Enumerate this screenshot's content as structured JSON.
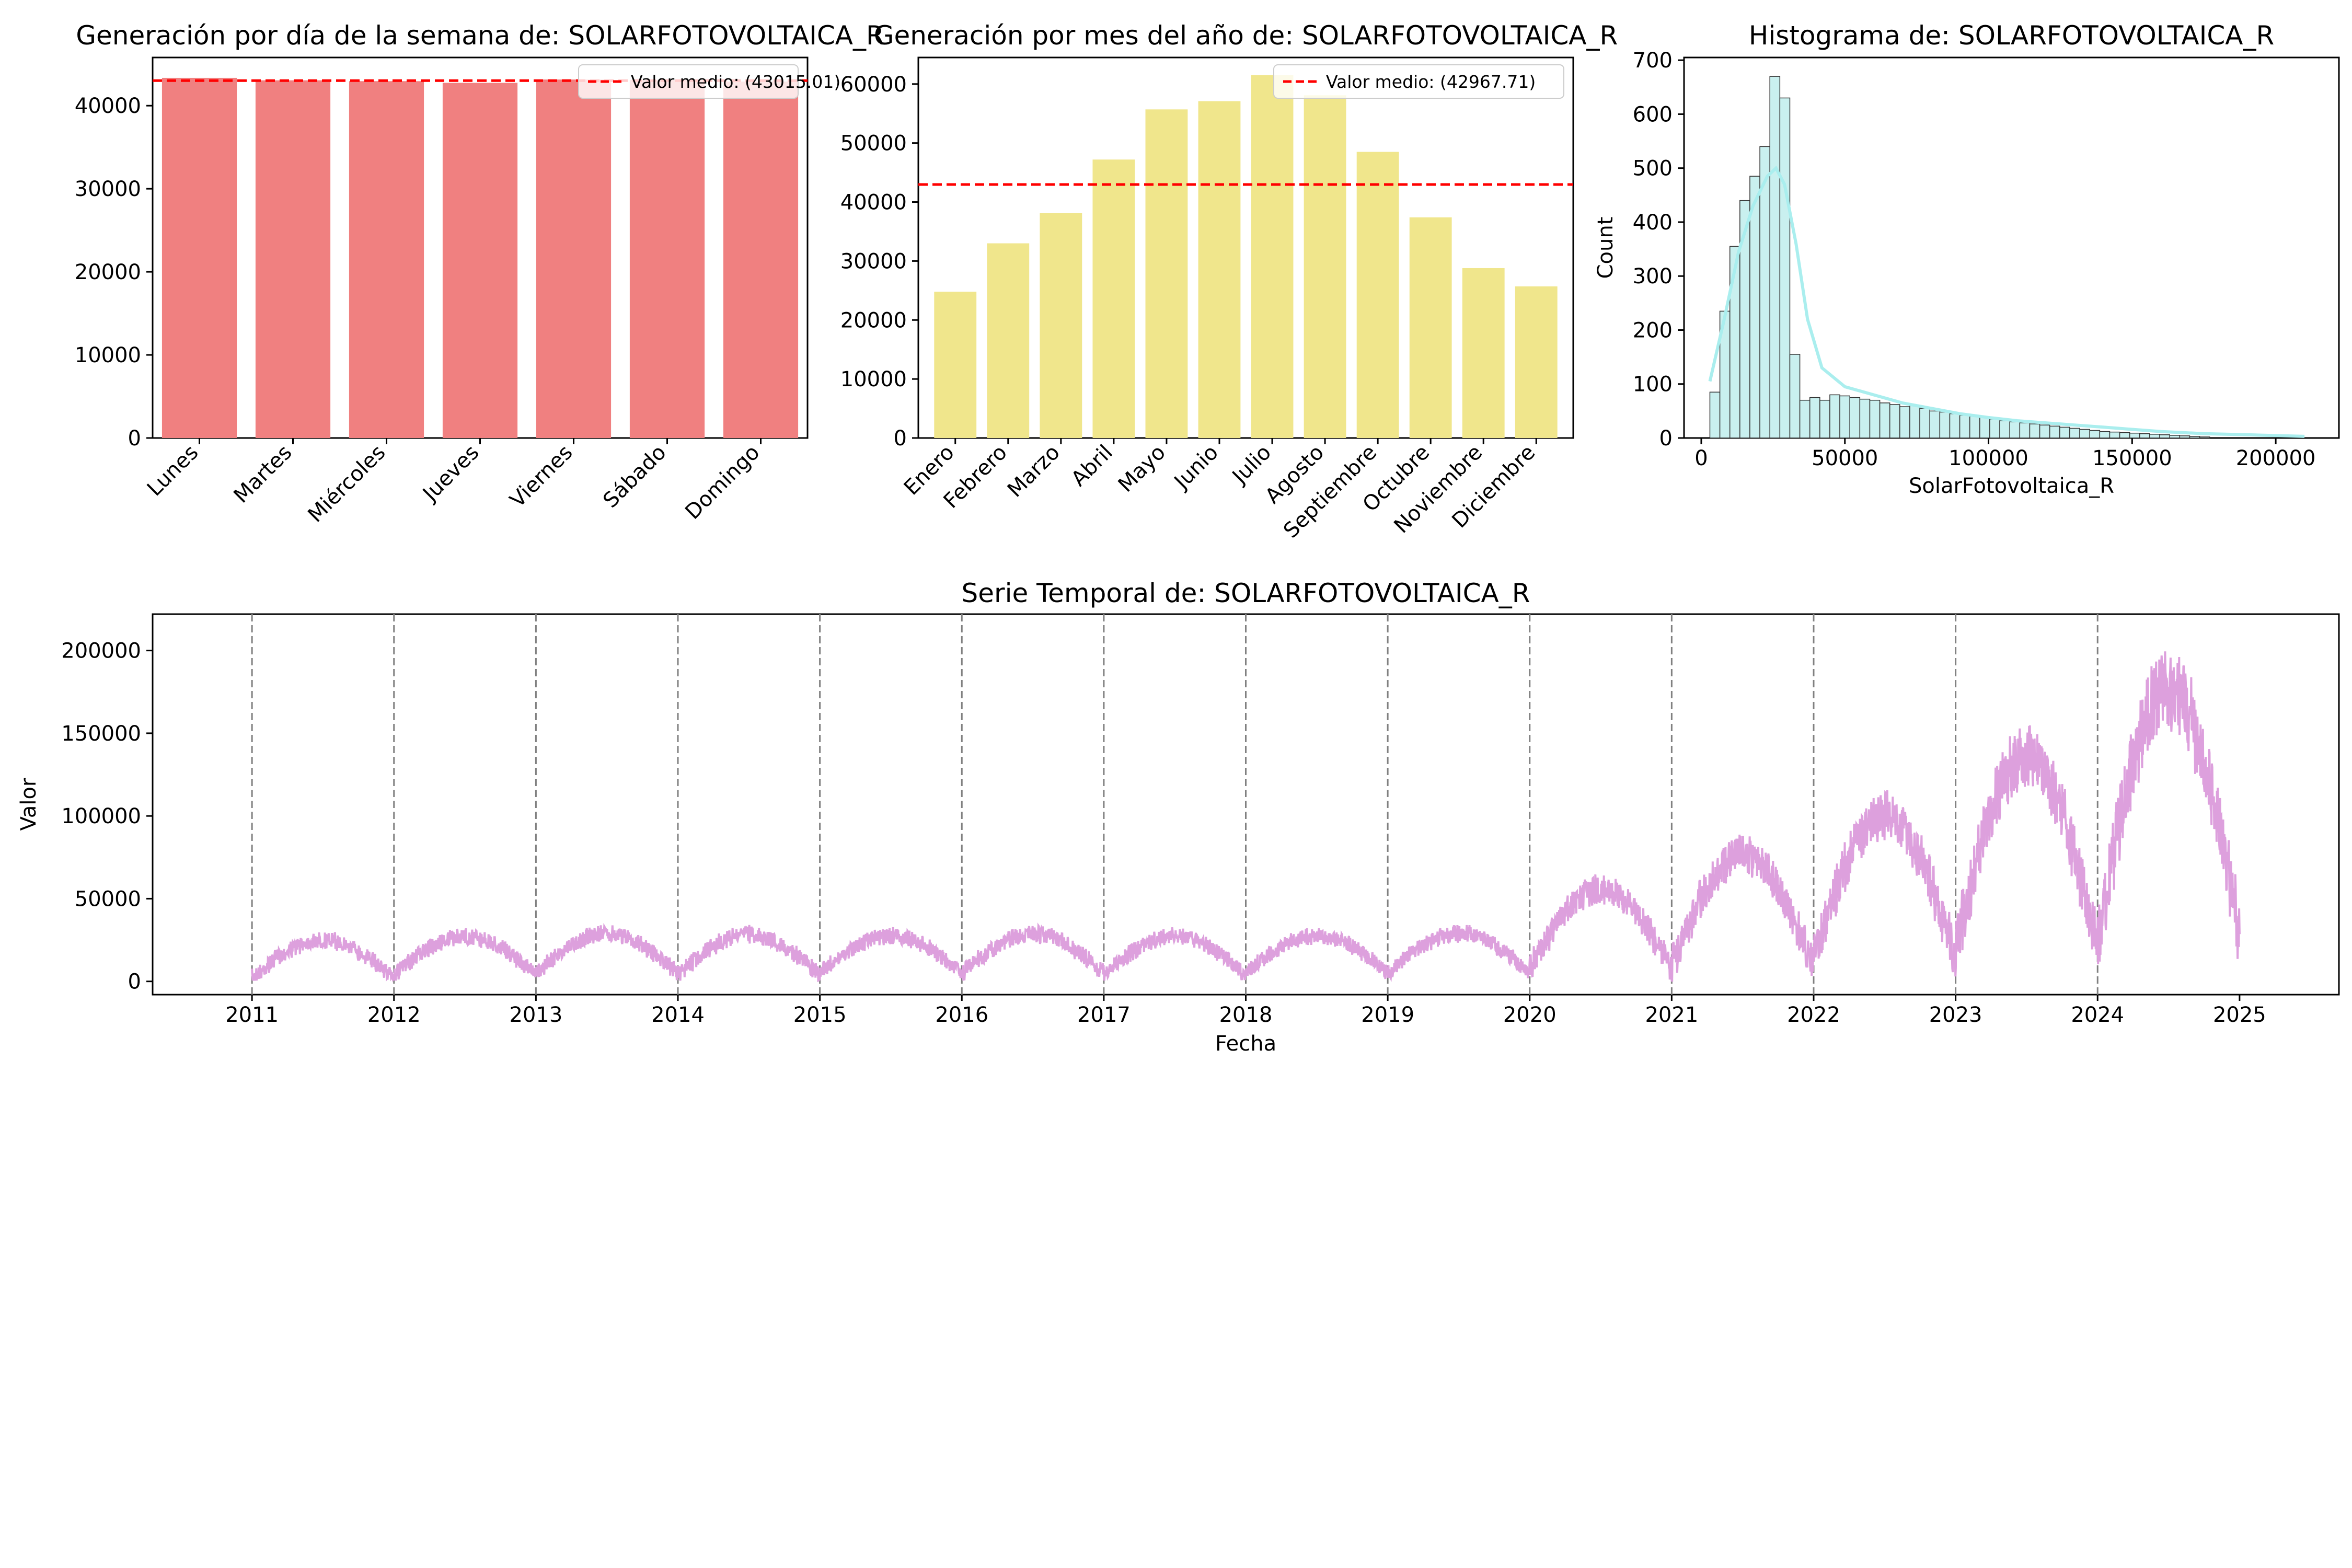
{
  "chart_data": [
    {
      "type": "bar",
      "title": "Generación por día de la semana de: SOLARFOTOVOLTAICA_R",
      "categories": [
        "Lunes",
        "Martes",
        "Miércoles",
        "Jueves",
        "Viernes",
        "Sábado",
        "Domingo"
      ],
      "values": [
        43350,
        43050,
        42950,
        42750,
        43150,
        43100,
        42900
      ],
      "ylim": [
        0,
        45800
      ],
      "yticks": [
        0,
        10000,
        20000,
        30000,
        40000
      ],
      "mean": 43015.01,
      "legend": "Valor medio: (43015.01)",
      "legend_position": "top-right",
      "colors": {
        "bar": "#f08080",
        "mean": "#ff0000"
      }
    },
    {
      "type": "bar",
      "title": "Generación por mes del año de: SOLARFOTOVOLTAICA_R",
      "categories": [
        "Enero",
        "Febrero",
        "Marzo",
        "Abril",
        "Mayo",
        "Junio",
        "Julio",
        "Agosto",
        "Septiembre",
        "Octubre",
        "Noviembre",
        "Diciembre"
      ],
      "values": [
        24800,
        33000,
        38100,
        47200,
        55700,
        57100,
        61500,
        58100,
        48500,
        37400,
        28800,
        25700
      ],
      "ylim": [
        0,
        64500
      ],
      "yticks": [
        0,
        10000,
        20000,
        30000,
        40000,
        50000,
        60000
      ],
      "mean": 42967.71,
      "legend": "Valor medio: (42967.71)",
      "legend_position": "top-right",
      "colors": {
        "bar": "#f0e68c",
        "mean": "#ff0000"
      }
    },
    {
      "type": "histogram",
      "title": "Histograma de: SOLARFOTOVOLTAICA_R",
      "xlabel": "SolarFotovoltaica_R",
      "ylabel": "Count",
      "bin_start": 3000,
      "bin_width": 3480,
      "counts": [
        85,
        235,
        355,
        440,
        485,
        540,
        670,
        630,
        155,
        70,
        75,
        70,
        80,
        78,
        75,
        72,
        70,
        65,
        62,
        58,
        60,
        55,
        50,
        48,
        45,
        42,
        40,
        38,
        35,
        32,
        30,
        28,
        26,
        24,
        22,
        20,
        18,
        16,
        14,
        12,
        11,
        10,
        9,
        8,
        7,
        6,
        5,
        4,
        3,
        2
      ],
      "kde": [
        [
          3000,
          105
        ],
        [
          8000,
          220
        ],
        [
          13000,
          345
        ],
        [
          18000,
          430
        ],
        [
          23000,
          485
        ],
        [
          26000,
          500
        ],
        [
          29000,
          470
        ],
        [
          33000,
          360
        ],
        [
          37000,
          220
        ],
        [
          42000,
          130
        ],
        [
          50000,
          95
        ],
        [
          60000,
          80
        ],
        [
          70000,
          65
        ],
        [
          80000,
          55
        ],
        [
          90000,
          45
        ],
        [
          100000,
          38
        ],
        [
          110000,
          32
        ],
        [
          120000,
          28
        ],
        [
          130000,
          24
        ],
        [
          140000,
          20
        ],
        [
          150000,
          16
        ],
        [
          160000,
          12
        ],
        [
          175000,
          8
        ],
        [
          190000,
          6
        ],
        [
          210000,
          3
        ]
      ],
      "xlim": [
        -6000,
        222000
      ],
      "ylim": [
        0,
        705
      ],
      "xticks": [
        0,
        50000,
        100000,
        150000,
        200000
      ],
      "yticks": [
        0,
        100,
        200,
        300,
        400,
        500,
        600,
        700
      ],
      "colors": {
        "bar": "#c9f0ef",
        "edge": "#333333",
        "kde": "#aaeeee"
      }
    },
    {
      "type": "line",
      "title": "Serie Temporal de: SOLARFOTOVOLTAICA_R",
      "xlabel": "Fecha",
      "ylabel": "Valor",
      "xlim": [
        2010.3,
        2025.7
      ],
      "ylim": [
        -8000,
        222000
      ],
      "xticks": [
        2011,
        2012,
        2013,
        2014,
        2015,
        2016,
        2017,
        2018,
        2019,
        2020,
        2021,
        2022,
        2023,
        2024,
        2025
      ],
      "yticks": [
        0,
        50000,
        100000,
        150000,
        200000
      ],
      "year_lines": [
        2011,
        2012,
        2013,
        2014,
        2015,
        2016,
        2017,
        2018,
        2019,
        2020,
        2021,
        2022,
        2023,
        2024
      ],
      "series": [
        {
          "x_start": 2011.0,
          "x_end": 2025.0,
          "yearly_profile": [
            {
              "year": 2011,
              "winter": 6000,
              "summer": 29000
            },
            {
              "year": 2012,
              "winter": 8000,
              "summer": 31000
            },
            {
              "year": 2013,
              "winter": 9000,
              "summer": 33000
            },
            {
              "year": 2014,
              "winter": 8000,
              "summer": 32500
            },
            {
              "year": 2015,
              "winter": 9000,
              "summer": 31500
            },
            {
              "year": 2016,
              "winter": 9000,
              "summer": 32500
            },
            {
              "year": 2017,
              "winter": 8000,
              "summer": 31500
            },
            {
              "year": 2018,
              "winter": 9000,
              "summer": 31500
            },
            {
              "year": 2019,
              "winter": 9000,
              "summer": 33000
            },
            {
              "year": 2020,
              "winter": 15000,
              "summer": 62000
            },
            {
              "year": 2021,
              "winter": 18000,
              "summer": 86000
            },
            {
              "year": 2022,
              "winter": 25000,
              "summer": 112000
            },
            {
              "year": 2023,
              "winter": 35000,
              "summer": 150000
            },
            {
              "year": 2024,
              "winter": 45000,
              "summer": 195000
            }
          ]
        }
      ],
      "colors": {
        "line": "#dda0dd",
        "year_line": "#808080"
      }
    }
  ]
}
